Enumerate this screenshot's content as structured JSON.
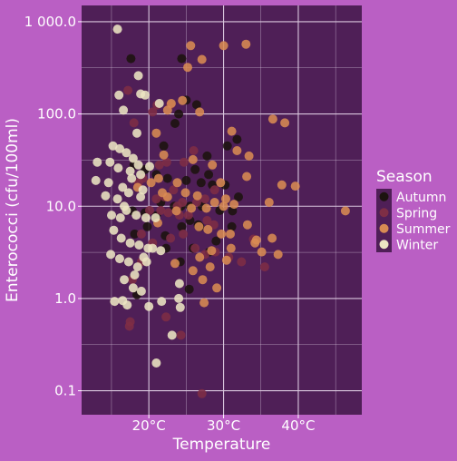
{
  "colors": {
    "background": "#BA5FC4",
    "panel": "#4F1F57",
    "grid": "#D9C6DD",
    "text": "#FFFFFF"
  },
  "chart_data": {
    "type": "scatter",
    "title": "",
    "xlabel": "Temperature",
    "ylabel": "Enterococci (cfu/100ml)",
    "xlim": [
      11,
      48.5
    ],
    "ylim": [
      0.055,
      1500
    ],
    "yscale": "log",
    "grid": true,
    "legend_position": "right",
    "x_ticks": [
      {
        "value": 20,
        "label": "20°C"
      },
      {
        "value": 30,
        "label": "30°C"
      },
      {
        "value": 40,
        "label": "40°C"
      }
    ],
    "y_ticks": [
      {
        "value": 0.1,
        "label": "0.1"
      },
      {
        "value": 1,
        "label": "1.0"
      },
      {
        "value": 10,
        "label": "10.0"
      },
      {
        "value": 100,
        "label": "100.0"
      },
      {
        "value": 1000,
        "label": "1 000.0"
      }
    ],
    "legend_title": "Season",
    "series": [
      {
        "name": "Autumn",
        "color": "#1C130F",
        "points": [
          [
            17.6,
            398
          ],
          [
            24.4,
            398
          ],
          [
            25.0,
            141
          ],
          [
            24.0,
            100
          ],
          [
            26.4,
            126
          ],
          [
            23.5,
            79
          ],
          [
            31.8,
            53
          ],
          [
            30.5,
            45
          ],
          [
            22.0,
            45
          ],
          [
            27.8,
            35
          ],
          [
            18.0,
            28
          ],
          [
            19.5,
            25
          ],
          [
            26.2,
            25
          ],
          [
            21.0,
            22
          ],
          [
            22.5,
            20
          ],
          [
            28.0,
            22
          ],
          [
            25.0,
            19
          ],
          [
            27.0,
            18
          ],
          [
            28.5,
            17
          ],
          [
            30.2,
            17
          ],
          [
            32.0,
            12.6
          ],
          [
            21.6,
            11
          ],
          [
            24.3,
            10
          ],
          [
            23.4,
            10
          ],
          [
            25.5,
            10
          ],
          [
            27.1,
            10
          ],
          [
            29.5,
            9
          ],
          [
            31.2,
            8.9
          ],
          [
            19.5,
            8.5
          ],
          [
            17.8,
            8.9
          ],
          [
            21.0,
            7.9
          ],
          [
            25.5,
            7
          ],
          [
            26.6,
            6.3
          ],
          [
            24.4,
            6
          ],
          [
            26.8,
            6
          ],
          [
            31.1,
            6
          ],
          [
            22.2,
            4.8
          ],
          [
            25.9,
            3.5
          ],
          [
            28.1,
            3.2
          ],
          [
            18.1,
            5
          ],
          [
            19.8,
            6
          ],
          [
            24.2,
            2.5
          ],
          [
            25.4,
            1.26
          ],
          [
            18.4,
            1.1
          ],
          [
            22.3,
            3.5
          ],
          [
            29.0,
            4.2
          ]
        ]
      },
      {
        "name": "Spring",
        "color": "#7E2E46",
        "points": [
          [
            17.2,
            180
          ],
          [
            18.0,
            80
          ],
          [
            20.5,
            105
          ],
          [
            21.1,
            125
          ],
          [
            22.9,
            126
          ],
          [
            21.4,
            28
          ],
          [
            22.4,
            30
          ],
          [
            23.3,
            15
          ],
          [
            19.2,
            20
          ],
          [
            18.6,
            18
          ],
          [
            21.0,
            12
          ],
          [
            22.1,
            12.6
          ],
          [
            24.5,
            11
          ],
          [
            26.4,
            11
          ],
          [
            27.5,
            12
          ],
          [
            28.8,
            15
          ],
          [
            20.1,
            9
          ],
          [
            21.6,
            9
          ],
          [
            22.6,
            8.5
          ],
          [
            24.1,
            8
          ],
          [
            25.3,
            8
          ],
          [
            27.8,
            7
          ],
          [
            28.7,
            6.3
          ],
          [
            19.0,
            5
          ],
          [
            20.5,
            4
          ],
          [
            22.9,
            4.5
          ],
          [
            24.6,
            5
          ],
          [
            26.2,
            3.5
          ],
          [
            27.5,
            3
          ],
          [
            28.9,
            3.2
          ],
          [
            30.7,
            2.8
          ],
          [
            32.4,
            2.5
          ],
          [
            34.0,
            4.4
          ],
          [
            35.5,
            2.2
          ],
          [
            19.0,
            2.5
          ],
          [
            17.8,
            1.6
          ],
          [
            17.5,
            0.56
          ],
          [
            17.4,
            0.5
          ],
          [
            22.3,
            0.63
          ],
          [
            24.3,
            0.4
          ],
          [
            27.1,
            0.093
          ],
          [
            23.8,
            10
          ],
          [
            26.0,
            40
          ],
          [
            24.7,
            30
          ]
        ]
      },
      {
        "name": "Summer",
        "color": "#D88B53",
        "points": [
          [
            25.6,
            550
          ],
          [
            27.1,
            390
          ],
          [
            30.0,
            550
          ],
          [
            33.0,
            570
          ],
          [
            25.2,
            320
          ],
          [
            24.5,
            140
          ],
          [
            23.0,
            130
          ],
          [
            22.5,
            110
          ],
          [
            26.8,
            105
          ],
          [
            31.1,
            65
          ],
          [
            31.8,
            40
          ],
          [
            36.6,
            88
          ],
          [
            38.2,
            80
          ],
          [
            33.4,
            35
          ],
          [
            21.0,
            62
          ],
          [
            22.0,
            36
          ],
          [
            25.9,
            32
          ],
          [
            28.5,
            28
          ],
          [
            29.6,
            18
          ],
          [
            33.1,
            21
          ],
          [
            37.8,
            17
          ],
          [
            39.6,
            16.5
          ],
          [
            36.1,
            11
          ],
          [
            46.3,
            8.9
          ],
          [
            23.8,
            18
          ],
          [
            21.3,
            20
          ],
          [
            20.3,
            18
          ],
          [
            21.8,
            14
          ],
          [
            22.5,
            12.6
          ],
          [
            24.9,
            14
          ],
          [
            26.5,
            13
          ],
          [
            27.7,
            9.5
          ],
          [
            28.8,
            11
          ],
          [
            30.3,
            12
          ],
          [
            33.2,
            6.3
          ],
          [
            31.4,
            10.5
          ],
          [
            30.0,
            10
          ],
          [
            23.7,
            8.9
          ],
          [
            21.2,
            6.6
          ],
          [
            26.7,
            6
          ],
          [
            27.9,
            5.6
          ],
          [
            29.7,
            5
          ],
          [
            30.9,
            5
          ],
          [
            34.2,
            4
          ],
          [
            36.5,
            4.5
          ],
          [
            37.3,
            3
          ],
          [
            35.1,
            3.2
          ],
          [
            31.0,
            3.5
          ],
          [
            28.4,
            3.3
          ],
          [
            26.8,
            2.8
          ],
          [
            30.4,
            2.6
          ],
          [
            28.2,
            2.2
          ],
          [
            23.5,
            2.4
          ],
          [
            25.9,
            2
          ],
          [
            27.2,
            1.6
          ],
          [
            29.1,
            1.3
          ],
          [
            27.4,
            0.9
          ],
          [
            34.4,
            4.3
          ],
          [
            18.5,
            16
          ],
          [
            25.7,
            9.5
          ]
        ]
      },
      {
        "name": "Winter",
        "color": "#ECE5C3",
        "points": [
          [
            15.8,
            830
          ],
          [
            18.6,
            260
          ],
          [
            16.0,
            160
          ],
          [
            18.9,
            165
          ],
          [
            19.5,
            160
          ],
          [
            21.4,
            130
          ],
          [
            16.6,
            110
          ],
          [
            18.4,
            62
          ],
          [
            15.2,
            45
          ],
          [
            16.1,
            42
          ],
          [
            17.0,
            38
          ],
          [
            17.9,
            33
          ],
          [
            18.6,
            28
          ],
          [
            13.1,
            30
          ],
          [
            14.8,
            30
          ],
          [
            15.9,
            26
          ],
          [
            17.5,
            24
          ],
          [
            18.9,
            22
          ],
          [
            17.7,
            20
          ],
          [
            20.1,
            27
          ],
          [
            12.9,
            19
          ],
          [
            14.6,
            18
          ],
          [
            16.5,
            16
          ],
          [
            19.2,
            15
          ],
          [
            14.2,
            13
          ],
          [
            15.8,
            12
          ],
          [
            17.3,
            14
          ],
          [
            18.9,
            12.6
          ],
          [
            16.7,
            10
          ],
          [
            15.0,
            8
          ],
          [
            16.2,
            7.5
          ],
          [
            17.0,
            9
          ],
          [
            18.3,
            8
          ],
          [
            19.6,
            7.5
          ],
          [
            20.9,
            7.5
          ],
          [
            15.3,
            5.5
          ],
          [
            16.3,
            4.5
          ],
          [
            17.5,
            4
          ],
          [
            18.7,
            3.8
          ],
          [
            19.9,
            3.5
          ],
          [
            21.6,
            3.3
          ],
          [
            14.9,
            3
          ],
          [
            16.1,
            2.7
          ],
          [
            17.3,
            2.5
          ],
          [
            18.5,
            2.2
          ],
          [
            19.7,
            2.5
          ],
          [
            20.5,
            3.5
          ],
          [
            19.3,
            2.8
          ],
          [
            18.1,
            1.8
          ],
          [
            16.7,
            1.6
          ],
          [
            17.9,
            1.3
          ],
          [
            19.0,
            1.2
          ],
          [
            15.4,
            0.93
          ],
          [
            16.5,
            0.95
          ],
          [
            17.1,
            0.85
          ],
          [
            20.0,
            0.82
          ],
          [
            21.7,
            0.93
          ],
          [
            24.1,
            1.45
          ],
          [
            24.2,
            0.8
          ],
          [
            24.0,
            1.0
          ],
          [
            23.1,
            0.4
          ],
          [
            21.0,
            0.2
          ]
        ]
      }
    ]
  }
}
